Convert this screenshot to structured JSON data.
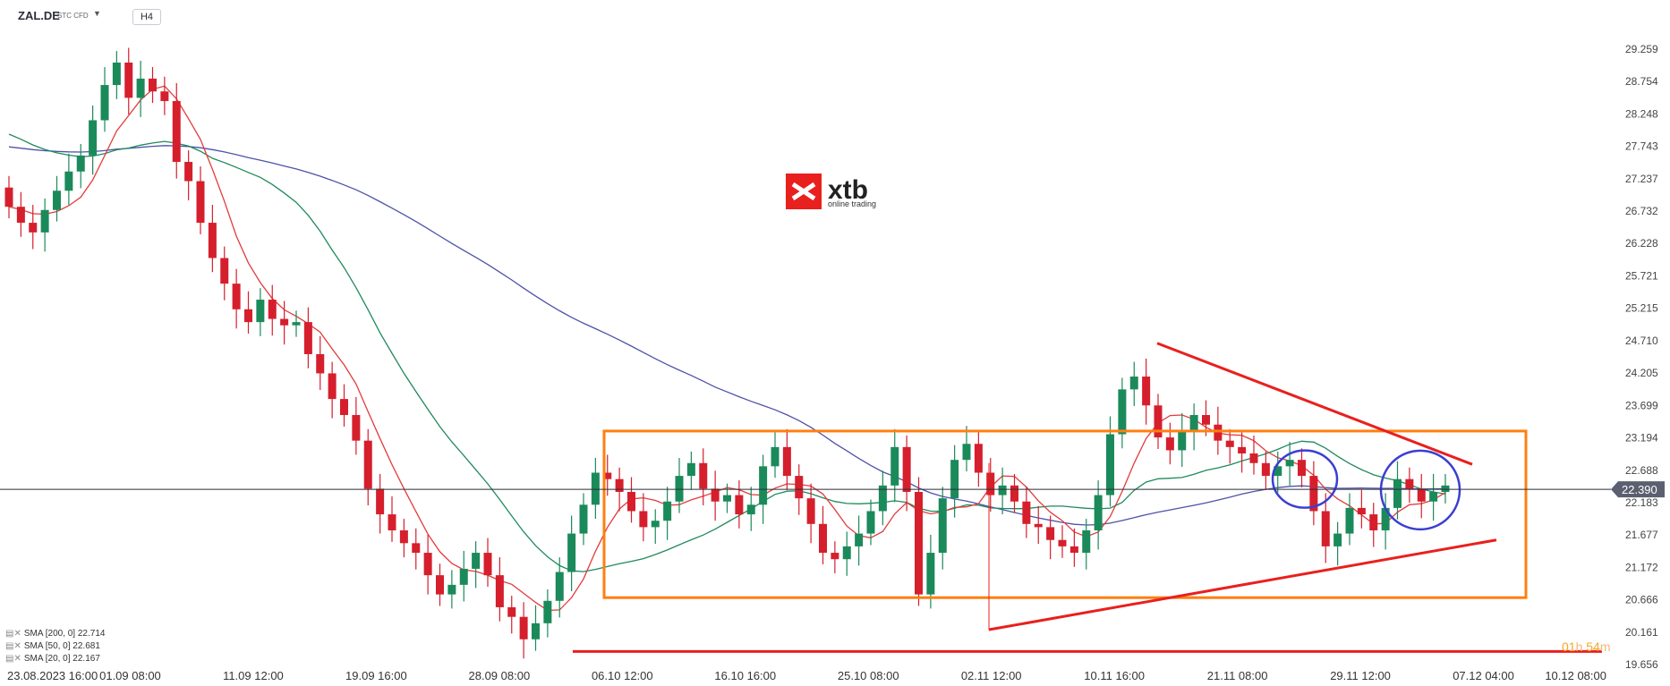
{
  "header": {
    "symbol": "ZAL.DE",
    "symbol_type": "STC CFD",
    "timeframe": "H4"
  },
  "logo": {
    "name": "xtb",
    "tagline": "online trading"
  },
  "countdown": {
    "hours": "01",
    "h_unit": "h",
    "minutes": "54",
    "m_unit": "m"
  },
  "legend": [
    {
      "label": "SMA [200, 0] 22.714"
    },
    {
      "label": "SMA [50, 0] 22.681"
    },
    {
      "label": "SMA [20, 0] 22.167"
    }
  ],
  "chart_data": {
    "type": "candlestick",
    "title": "",
    "xlabel": "",
    "ylabel": "",
    "ylim": [
      19.656,
      29.259
    ],
    "y_ticks": [
      29.259,
      28.754,
      28.248,
      27.743,
      27.237,
      26.732,
      26.228,
      25.721,
      25.215,
      24.71,
      24.205,
      23.699,
      23.194,
      22.688,
      22.183,
      21.677,
      21.172,
      20.666,
      20.161,
      19.656
    ],
    "x_ticks": [
      "23.08.2023 16:00",
      "01.09 08:00",
      "11.09 12:00",
      "19.09 16:00",
      "28.09 08:00",
      "06.10 12:00",
      "16.10 16:00",
      "25.10 08:00",
      "02.11 12:00",
      "10.11 16:00",
      "21.11 08:00",
      "29.11 12:00",
      "07.12 04:00",
      "10.12 08:00"
    ],
    "current_price": 22.39,
    "price_line_color": "#2a2e39",
    "price_badge_color": "#5a6070",
    "up_color": "#1b8a5a",
    "down_color": "#d61f2c",
    "closes": [
      26.8,
      26.55,
      26.4,
      26.75,
      27.05,
      27.35,
      27.6,
      28.15,
      28.7,
      29.05,
      28.5,
      28.8,
      28.6,
      28.45,
      27.5,
      27.2,
      26.55,
      26.0,
      25.6,
      25.2,
      25.0,
      25.35,
      25.05,
      24.95,
      25.0,
      24.5,
      24.2,
      23.8,
      23.55,
      23.15,
      22.4,
      22.0,
      21.75,
      21.55,
      21.4,
      21.05,
      20.75,
      20.9,
      21.15,
      21.4,
      21.05,
      20.55,
      20.4,
      20.05,
      20.3,
      20.65,
      21.1,
      21.7,
      22.15,
      22.65,
      22.55,
      22.35,
      22.05,
      21.8,
      21.9,
      22.2,
      22.6,
      22.8,
      22.4,
      22.2,
      22.3,
      22.0,
      22.15,
      22.75,
      23.05,
      22.6,
      22.25,
      21.85,
      21.4,
      21.3,
      21.5,
      21.7,
      22.05,
      22.45,
      23.05,
      22.35,
      20.75,
      21.4,
      22.25,
      22.85,
      23.1,
      22.65,
      22.3,
      22.45,
      22.2,
      21.85,
      21.8,
      21.6,
      21.5,
      21.4,
      21.75,
      22.3,
      23.25,
      23.95,
      24.15,
      23.7,
      23.2,
      23.0,
      23.3,
      23.55,
      23.4,
      23.15,
      23.05,
      22.95,
      22.8,
      22.6,
      22.75,
      22.85,
      22.6,
      22.05,
      21.5,
      21.7,
      22.1,
      22.0,
      21.75,
      22.1,
      22.55,
      22.4,
      22.2,
      22.35,
      22.45
    ]
  },
  "annotations": {
    "rectangle": {
      "top_price": 23.3,
      "bottom_price": 20.7,
      "color": "#ff7f11"
    },
    "upper_trendline": {
      "from_price": 24.67,
      "to_price": 22.78,
      "color": "#e8201e"
    },
    "lower_trendline": {
      "from_price": 20.2,
      "to_price": 21.6,
      "color": "#e8201e"
    },
    "support_line": {
      "price": 19.86,
      "color": "#e8201e"
    },
    "circles_color": "#3b3fd1"
  },
  "sma_colors": {
    "sma200": "#4c52a8",
    "sma50": "#1f8a5b",
    "sma20": "#e23b3b"
  }
}
